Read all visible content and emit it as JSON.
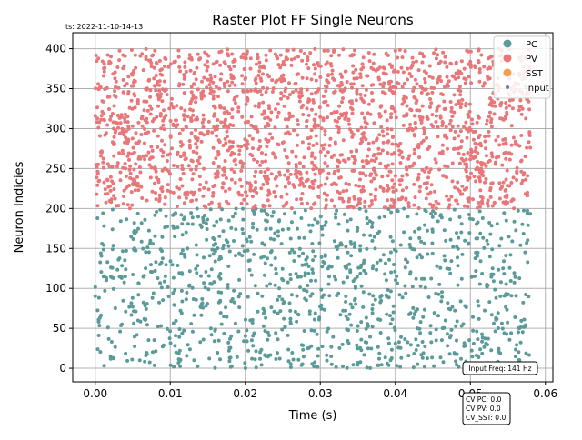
{
  "timestamp": "ts: 2022-11-10-14-13",
  "chart_data": {
    "type": "scatter",
    "title": "Raster Plot FF Single Neurons",
    "xlabel": "Time (s)",
    "ylabel": "Neuron Indicies",
    "xlim": [
      -0.003,
      0.061
    ],
    "ylim": [
      -17,
      420
    ],
    "xticks": [
      0.0,
      0.01,
      0.02,
      0.03,
      0.04,
      0.05,
      0.06
    ],
    "xtick_labels": [
      "0.00",
      "0.01",
      "0.02",
      "0.03",
      "0.04",
      "0.05",
      "0.06"
    ],
    "yticks": [
      0,
      50,
      100,
      150,
      200,
      250,
      300,
      350,
      400
    ],
    "ytick_labels": [
      "0",
      "50",
      "100",
      "150",
      "200",
      "250",
      "300",
      "350",
      "400"
    ],
    "grid": true,
    "legend_position": "top-right",
    "series": [
      {
        "name": "PC",
        "color": "#5a9a98",
        "neuron_range": [
          0,
          200
        ],
        "time_range": [
          0.0,
          0.058
        ],
        "approx_count": 1150
      },
      {
        "name": "PV",
        "color": "#e8777a",
        "neuron_range": [
          200,
          400
        ],
        "time_range": [
          0.0,
          0.058
        ],
        "approx_count": 2050
      },
      {
        "name": "SST",
        "color": "#f0a050",
        "neuron_range": [],
        "time_range": [],
        "approx_count": 0
      },
      {
        "name": "input",
        "color": "#6a78a8",
        "neuron_range": [],
        "time_range": [],
        "approx_count": 0
      }
    ],
    "annotations": {
      "input_freq": "Input Freq: 141 Hz",
      "cv_lines": [
        "CV PC: 0.0",
        "CV PV: 0.0",
        "CV_SST: 0.0"
      ]
    }
  }
}
